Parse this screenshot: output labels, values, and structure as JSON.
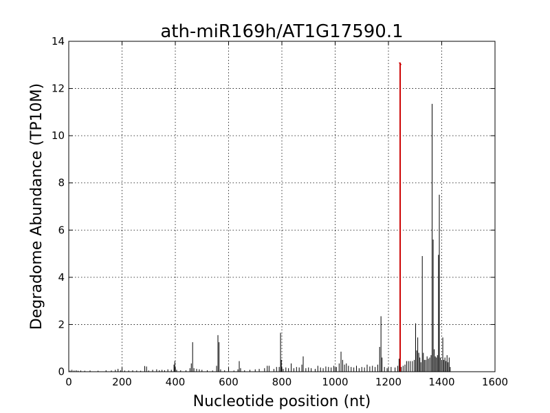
{
  "chart_data": {
    "type": "bar",
    "title": "ath-miR169h/AT1G17590.1",
    "xlabel": "Nucleotide position (nt)",
    "ylabel": "Degradome Abundance (TP10M)",
    "xlim": [
      0,
      1600
    ],
    "ylim": [
      0,
      14
    ],
    "xticks": [
      0,
      200,
      400,
      600,
      800,
      1000,
      1200,
      1400,
      1600
    ],
    "yticks": [
      0,
      2,
      4,
      6,
      8,
      10,
      12,
      14
    ],
    "grid": true,
    "colors": {
      "background": "#ffffff",
      "bars": "#000000",
      "target_site": "#cc0000",
      "grid": "#000000"
    },
    "target_site": {
      "x": 1244,
      "y": 13.1,
      "label": ""
    },
    "series": [
      {
        "values": [
          [
            5,
            0.05
          ],
          [
            12,
            0.08
          ],
          [
            20,
            0.05
          ],
          [
            28,
            0.06
          ],
          [
            35,
            0.04
          ],
          [
            45,
            0.05
          ],
          [
            60,
            0.04
          ],
          [
            80,
            0.05
          ],
          [
            110,
            0.04
          ],
          [
            140,
            0.06
          ],
          [
            160,
            0.05
          ],
          [
            175,
            0.08
          ],
          [
            185,
            0.12
          ],
          [
            195,
            0.06
          ],
          [
            210,
            0.05
          ],
          [
            225,
            0.05
          ],
          [
            240,
            0.06
          ],
          [
            255,
            0.05
          ],
          [
            270,
            0.04
          ],
          [
            285,
            0.24
          ],
          [
            292,
            0.22
          ],
          [
            300,
            0.05
          ],
          [
            315,
            0.08
          ],
          [
            330,
            0.1
          ],
          [
            340,
            0.06
          ],
          [
            350,
            0.08
          ],
          [
            360,
            0.06
          ],
          [
            372,
            0.1
          ],
          [
            385,
            0.08
          ],
          [
            395,
            0.3
          ],
          [
            398,
            0.45
          ],
          [
            405,
            0.08
          ],
          [
            420,
            0.06
          ],
          [
            440,
            0.06
          ],
          [
            455,
            0.15
          ],
          [
            460,
            0.35
          ],
          [
            465,
            1.25
          ],
          [
            470,
            0.15
          ],
          [
            480,
            0.12
          ],
          [
            490,
            0.1
          ],
          [
            500,
            0.08
          ],
          [
            520,
            0.06
          ],
          [
            540,
            0.05
          ],
          [
            555,
            0.25
          ],
          [
            560,
            1.55
          ],
          [
            564,
            1.25
          ],
          [
            570,
            0.1
          ],
          [
            585,
            0.06
          ],
          [
            600,
            0.08
          ],
          [
            620,
            0.05
          ],
          [
            635,
            0.1
          ],
          [
            640,
            0.45
          ],
          [
            645,
            0.15
          ],
          [
            660,
            0.06
          ],
          [
            680,
            0.08
          ],
          [
            700,
            0.1
          ],
          [
            715,
            0.12
          ],
          [
            735,
            0.15
          ],
          [
            745,
            0.25
          ],
          [
            752,
            0.25
          ],
          [
            770,
            0.12
          ],
          [
            780,
            0.2
          ],
          [
            790,
            0.2
          ],
          [
            795,
            1.65
          ],
          [
            798,
            0.5
          ],
          [
            805,
            0.12
          ],
          [
            815,
            0.18
          ],
          [
            825,
            0.15
          ],
          [
            835,
            0.35
          ],
          [
            845,
            0.15
          ],
          [
            855,
            0.2
          ],
          [
            865,
            0.18
          ],
          [
            875,
            0.3
          ],
          [
            880,
            0.65
          ],
          [
            890,
            0.15
          ],
          [
            900,
            0.18
          ],
          [
            910,
            0.15
          ],
          [
            925,
            0.12
          ],
          [
            935,
            0.25
          ],
          [
            945,
            0.18
          ],
          [
            955,
            0.15
          ],
          [
            965,
            0.22
          ],
          [
            975,
            0.2
          ],
          [
            985,
            0.18
          ],
          [
            995,
            0.25
          ],
          [
            1005,
            0.2
          ],
          [
            1015,
            0.35
          ],
          [
            1022,
            0.85
          ],
          [
            1028,
            0.5
          ],
          [
            1035,
            0.3
          ],
          [
            1042,
            0.35
          ],
          [
            1050,
            0.25
          ],
          [
            1060,
            0.2
          ],
          [
            1070,
            0.18
          ],
          [
            1080,
            0.25
          ],
          [
            1090,
            0.15
          ],
          [
            1100,
            0.2
          ],
          [
            1110,
            0.18
          ],
          [
            1120,
            0.3
          ],
          [
            1130,
            0.22
          ],
          [
            1140,
            0.25
          ],
          [
            1150,
            0.2
          ],
          [
            1160,
            0.3
          ],
          [
            1167,
            1.05
          ],
          [
            1172,
            2.35
          ],
          [
            1176,
            0.6
          ],
          [
            1185,
            0.2
          ],
          [
            1195,
            0.15
          ],
          [
            1210,
            0.2
          ],
          [
            1225,
            0.18
          ],
          [
            1235,
            0.25
          ],
          [
            1240,
            0.55
          ],
          [
            1248,
            0.2
          ],
          [
            1255,
            0.25
          ],
          [
            1262,
            0.3
          ],
          [
            1268,
            0.45
          ],
          [
            1275,
            0.45
          ],
          [
            1282,
            0.45
          ],
          [
            1290,
            0.45
          ],
          [
            1297,
            0.5
          ],
          [
            1302,
            2.05
          ],
          [
            1306,
            0.9
          ],
          [
            1310,
            1.45
          ],
          [
            1314,
            0.8
          ],
          [
            1318,
            0.6
          ],
          [
            1322,
            0.4
          ],
          [
            1327,
            4.9
          ],
          [
            1331,
            0.8
          ],
          [
            1335,
            0.5
          ],
          [
            1340,
            0.5
          ],
          [
            1345,
            0.65
          ],
          [
            1350,
            0.55
          ],
          [
            1355,
            0.6
          ],
          [
            1360,
            0.7
          ],
          [
            1364,
            11.35
          ],
          [
            1368,
            5.6
          ],
          [
            1372,
            0.95
          ],
          [
            1376,
            0.65
          ],
          [
            1380,
            0.6
          ],
          [
            1384,
            0.7
          ],
          [
            1388,
            4.95
          ],
          [
            1391,
            7.5
          ],
          [
            1395,
            0.6
          ],
          [
            1400,
            0.5
          ],
          [
            1404,
            1.45
          ],
          [
            1408,
            0.5
          ],
          [
            1412,
            0.6
          ],
          [
            1416,
            0.45
          ],
          [
            1420,
            0.7
          ],
          [
            1424,
            0.4
          ],
          [
            1428,
            0.6
          ],
          [
            1432,
            0.2
          ]
        ]
      }
    ]
  }
}
